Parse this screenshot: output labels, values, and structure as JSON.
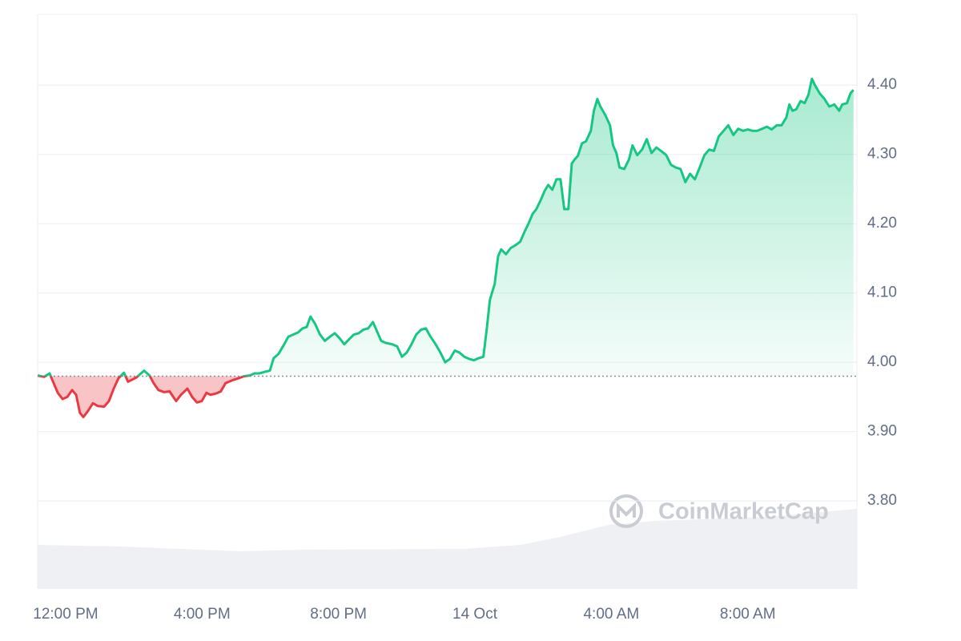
{
  "chart_data": {
    "type": "line",
    "x": [
      -0.82,
      -0.63,
      -0.47,
      -0.23,
      -0.09,
      0.05,
      0.19,
      0.31,
      0.42,
      0.52,
      0.66,
      0.8,
      0.94,
      1.13,
      1.27,
      1.41,
      1.55,
      1.71,
      1.83,
      2.07,
      2.3,
      2.46,
      2.58,
      2.72,
      2.89,
      3.05,
      3.24,
      3.38,
      3.57,
      3.71,
      3.85,
      3.99,
      4.13,
      4.25,
      4.41,
      4.55,
      4.69,
      4.88,
      5.07,
      5.23,
      5.4,
      5.54,
      5.68,
      5.82,
      5.99,
      6.1,
      6.24,
      6.41,
      6.53,
      6.67,
      6.81,
      6.95,
      7.07,
      7.18,
      7.32,
      7.46,
      7.6,
      7.75,
      7.89,
      8.03,
      8.17,
      8.31,
      8.45,
      8.59,
      8.73,
      8.87,
      9.01,
      9.11,
      9.25,
      9.39,
      9.58,
      9.72,
      9.86,
      10.0,
      10.14,
      10.28,
      10.42,
      10.56,
      10.7,
      10.85,
      10.99,
      11.13,
      11.27,
      11.41,
      11.55,
      11.69,
      11.83,
      11.97,
      12.11,
      12.25,
      12.35,
      12.44,
      12.58,
      12.68,
      12.77,
      12.91,
      13.05,
      13.19,
      13.33,
      13.45,
      13.57,
      13.69,
      13.8,
      13.94,
      14.04,
      14.15,
      14.27,
      14.39,
      14.51,
      14.62,
      14.74,
      14.84,
      14.93,
      15.02,
      15.14,
      15.26,
      15.4,
      15.49,
      15.59,
      15.68,
      15.82,
      15.96,
      16.05,
      16.15,
      16.24,
      16.38,
      16.52,
      16.62,
      16.76,
      16.9,
      17.04,
      17.18,
      17.32,
      17.46,
      17.61,
      17.75,
      17.89,
      18.03,
      18.17,
      18.31,
      18.45,
      18.59,
      18.73,
      18.87,
      19.01,
      19.15,
      19.29,
      19.43,
      19.58,
      19.72,
      19.86,
      20.0,
      20.14,
      20.28,
      20.42,
      20.56,
      20.7,
      20.85,
      20.99,
      21.13,
      21.22,
      21.31,
      21.42,
      21.55,
      21.67,
      21.78,
      21.88,
      21.97,
      22.11,
      22.25,
      22.39,
      22.54,
      22.68,
      22.77,
      22.91,
      23.01,
      23.1
    ],
    "values": [
      3.981,
      3.979,
      3.984,
      3.956,
      3.947,
      3.95,
      3.96,
      3.953,
      3.927,
      3.921,
      3.93,
      3.941,
      3.937,
      3.936,
      3.944,
      3.962,
      3.977,
      3.985,
      3.972,
      3.978,
      3.988,
      3.981,
      3.97,
      3.96,
      3.957,
      3.958,
      3.944,
      3.953,
      3.962,
      3.95,
      3.942,
      3.944,
      3.956,
      3.953,
      3.955,
      3.958,
      3.97,
      3.974,
      3.977,
      3.98,
      3.981,
      3.984,
      3.984,
      3.986,
      3.988,
      4.006,
      4.012,
      4.026,
      4.037,
      4.04,
      4.043,
      4.049,
      4.051,
      4.066,
      4.055,
      4.04,
      4.031,
      4.037,
      4.042,
      4.035,
      4.026,
      4.033,
      4.04,
      4.042,
      4.047,
      4.049,
      4.058,
      4.047,
      4.031,
      4.028,
      4.026,
      4.023,
      4.008,
      4.014,
      4.026,
      4.04,
      4.047,
      4.049,
      4.037,
      4.026,
      4.014,
      4.0,
      4.005,
      4.017,
      4.014,
      4.008,
      4.005,
      4.003,
      4.006,
      4.008,
      4.049,
      4.09,
      4.113,
      4.153,
      4.163,
      4.156,
      4.165,
      4.169,
      4.174,
      4.188,
      4.2,
      4.214,
      4.221,
      4.235,
      4.247,
      4.256,
      4.249,
      4.264,
      4.264,
      4.221,
      4.221,
      4.287,
      4.293,
      4.298,
      4.316,
      4.319,
      4.334,
      4.363,
      4.38,
      4.369,
      4.357,
      4.342,
      4.313,
      4.302,
      4.281,
      4.279,
      4.293,
      4.313,
      4.299,
      4.307,
      4.322,
      4.302,
      4.31,
      4.305,
      4.299,
      4.285,
      4.281,
      4.279,
      4.26,
      4.272,
      4.264,
      4.281,
      4.299,
      4.307,
      4.305,
      4.326,
      4.334,
      4.342,
      4.328,
      4.337,
      4.334,
      4.336,
      4.334,
      4.334,
      4.337,
      4.34,
      4.336,
      4.342,
      4.342,
      4.353,
      4.372,
      4.363,
      4.365,
      4.377,
      4.374,
      4.386,
      4.409,
      4.4,
      4.388,
      4.38,
      4.369,
      4.372,
      4.363,
      4.372,
      4.374,
      4.388,
      4.393
    ],
    "color": "#16c784",
    "down_color": "#ea3943",
    "baseline": 3.98,
    "xlim": [
      -0.82,
      23.2
    ],
    "xticks": [
      {
        "value": 0,
        "label": "12:00 PM"
      },
      {
        "value": 4,
        "label": "4:00 PM"
      },
      {
        "value": 8,
        "label": "8:00 PM"
      },
      {
        "value": 12,
        "label": "14 Oct"
      },
      {
        "value": 16,
        "label": "4:00 AM"
      },
      {
        "value": 20,
        "label": "8:00 AM"
      }
    ],
    "ylim": [
      3.673,
      4.502
    ],
    "yticks": [
      {
        "value": 3.8,
        "label": "3.80"
      },
      {
        "value": 3.9,
        "label": "3.90"
      },
      {
        "value": 4,
        "label": "4.00"
      },
      {
        "value": 4.1,
        "label": "4.10"
      },
      {
        "value": 4.2,
        "label": "4.20"
      },
      {
        "value": 4.3,
        "label": "4.30"
      },
      {
        "value": 4.4,
        "label": "4.40"
      }
    ],
    "grid": true,
    "watermark": "CoinMarketCap"
  }
}
